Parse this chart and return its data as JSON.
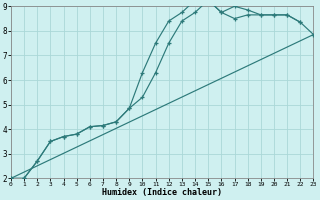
{
  "xlabel": "Humidex (Indice chaleur)",
  "bg_color": "#cff0f0",
  "grid_color": "#aad8d8",
  "line_color": "#2d7a7a",
  "xlim": [
    0,
    23
  ],
  "ylim": [
    2,
    9
  ],
  "xticks": [
    0,
    1,
    2,
    3,
    4,
    5,
    6,
    7,
    8,
    9,
    10,
    11,
    12,
    13,
    14,
    15,
    16,
    17,
    18,
    19,
    20,
    21,
    22,
    23
  ],
  "yticks": [
    2,
    3,
    4,
    5,
    6,
    7,
    8,
    9
  ],
  "line1_x": [
    0,
    1,
    2,
    3,
    4,
    5,
    6,
    7,
    8,
    9,
    10,
    11,
    12,
    13,
    14,
    15,
    16,
    17,
    18,
    19,
    20,
    21,
    22
  ],
  "line1_y": [
    2.0,
    2.0,
    2.7,
    3.5,
    3.7,
    3.8,
    4.1,
    4.15,
    4.3,
    4.85,
    6.3,
    7.5,
    8.4,
    8.75,
    9.25,
    9.25,
    8.75,
    9.0,
    8.85,
    8.65,
    8.65,
    8.65,
    8.35
  ],
  "line2_x": [
    0,
    1,
    2,
    3,
    4,
    5,
    6,
    7,
    8,
    9,
    10,
    11,
    12,
    13,
    14,
    15,
    16,
    17,
    18,
    19,
    20,
    21,
    22,
    23
  ],
  "line2_y": [
    2.0,
    2.0,
    2.7,
    3.5,
    3.7,
    3.8,
    4.1,
    4.15,
    4.3,
    4.85,
    5.3,
    6.3,
    7.5,
    8.4,
    8.75,
    9.25,
    8.75,
    8.5,
    8.65,
    8.65,
    8.65,
    8.65,
    8.35,
    7.85
  ],
  "line3_x": [
    0,
    23
  ],
  "line3_y": [
    2.0,
    7.85
  ]
}
